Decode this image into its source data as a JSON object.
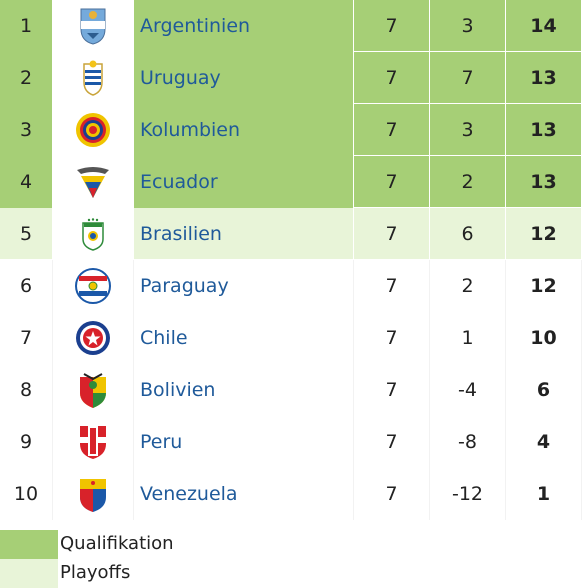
{
  "standings": [
    {
      "rank": "1",
      "flag": "argentina-flag-icon",
      "team": "Argentinien",
      "played": "7",
      "diff": "3",
      "points": "14",
      "zone": "qualifikation"
    },
    {
      "rank": "2",
      "flag": "uruguay-flag-icon",
      "team": "Uruguay",
      "played": "7",
      "diff": "7",
      "points": "13",
      "zone": "qualifikation"
    },
    {
      "rank": "3",
      "flag": "colombia-flag-icon",
      "team": "Kolumbien",
      "played": "7",
      "diff": "3",
      "points": "13",
      "zone": "qualifikation"
    },
    {
      "rank": "4",
      "flag": "ecuador-flag-icon",
      "team": "Ecuador",
      "played": "7",
      "diff": "2",
      "points": "13",
      "zone": "qualifikation"
    },
    {
      "rank": "5",
      "flag": "brazil-flag-icon",
      "team": "Brasilien",
      "played": "7",
      "diff": "6",
      "points": "12",
      "zone": "playoffs"
    },
    {
      "rank": "6",
      "flag": "paraguay-flag-icon",
      "team": "Paraguay",
      "played": "7",
      "diff": "2",
      "points": "12",
      "zone": "none"
    },
    {
      "rank": "7",
      "flag": "chile-flag-icon",
      "team": "Chile",
      "played": "7",
      "diff": "1",
      "points": "10",
      "zone": "none"
    },
    {
      "rank": "8",
      "flag": "bolivia-flag-icon",
      "team": "Bolivien",
      "played": "7",
      "diff": "-4",
      "points": "6",
      "zone": "none"
    },
    {
      "rank": "9",
      "flag": "peru-flag-icon",
      "team": "Peru",
      "played": "7",
      "diff": "-8",
      "points": "4",
      "zone": "none"
    },
    {
      "rank": "10",
      "flag": "venezuela-flag-icon",
      "team": "Venezuela",
      "played": "7",
      "diff": "-12",
      "points": "1",
      "zone": "none"
    }
  ],
  "legend": {
    "qualifikation": "Qualifikation",
    "playoffs": "Playoffs"
  },
  "colors": {
    "qualifikation": "#a6cf76",
    "playoffs": "#e8f4d8",
    "team_link": "#1f5a9a"
  }
}
